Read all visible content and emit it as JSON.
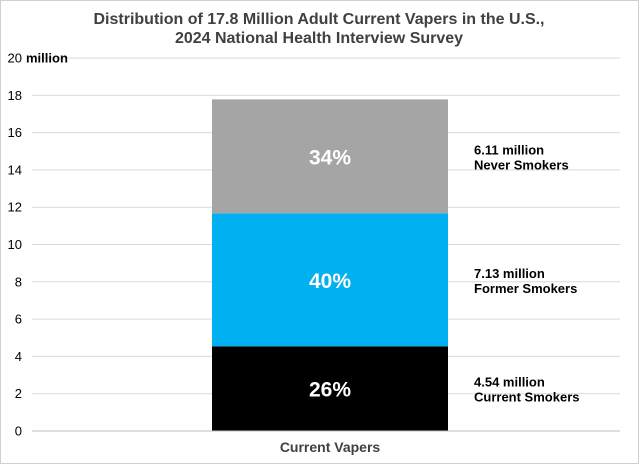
{
  "chart_data": {
    "type": "bar",
    "stacked": true,
    "title": "Distribution of 17.8 Million Adult Current Vapers in the U.S.,",
    "subtitle": "2024 National Health Interview Survey",
    "y_unit": "million",
    "ylim": [
      0,
      20
    ],
    "yticks": [
      "20",
      "18",
      "16",
      "14",
      "12",
      "10",
      "8",
      "6",
      "4",
      "2",
      "0"
    ],
    "grid": true,
    "categories": [
      "Current Vapers"
    ],
    "series": [
      {
        "value": 4.54,
        "percent": "26%",
        "value_label": "4.54 million",
        "group_label": "Current Smokers",
        "color": "#000000"
      },
      {
        "value": 7.13,
        "percent": "40%",
        "value_label": "7.13 million",
        "group_label": "Former Smokers",
        "color": "#00b0f0"
      },
      {
        "value": 6.11,
        "percent": "34%",
        "value_label": "6.11 million",
        "group_label": "Never Smokers",
        "color": "#a5a5a5"
      }
    ]
  }
}
